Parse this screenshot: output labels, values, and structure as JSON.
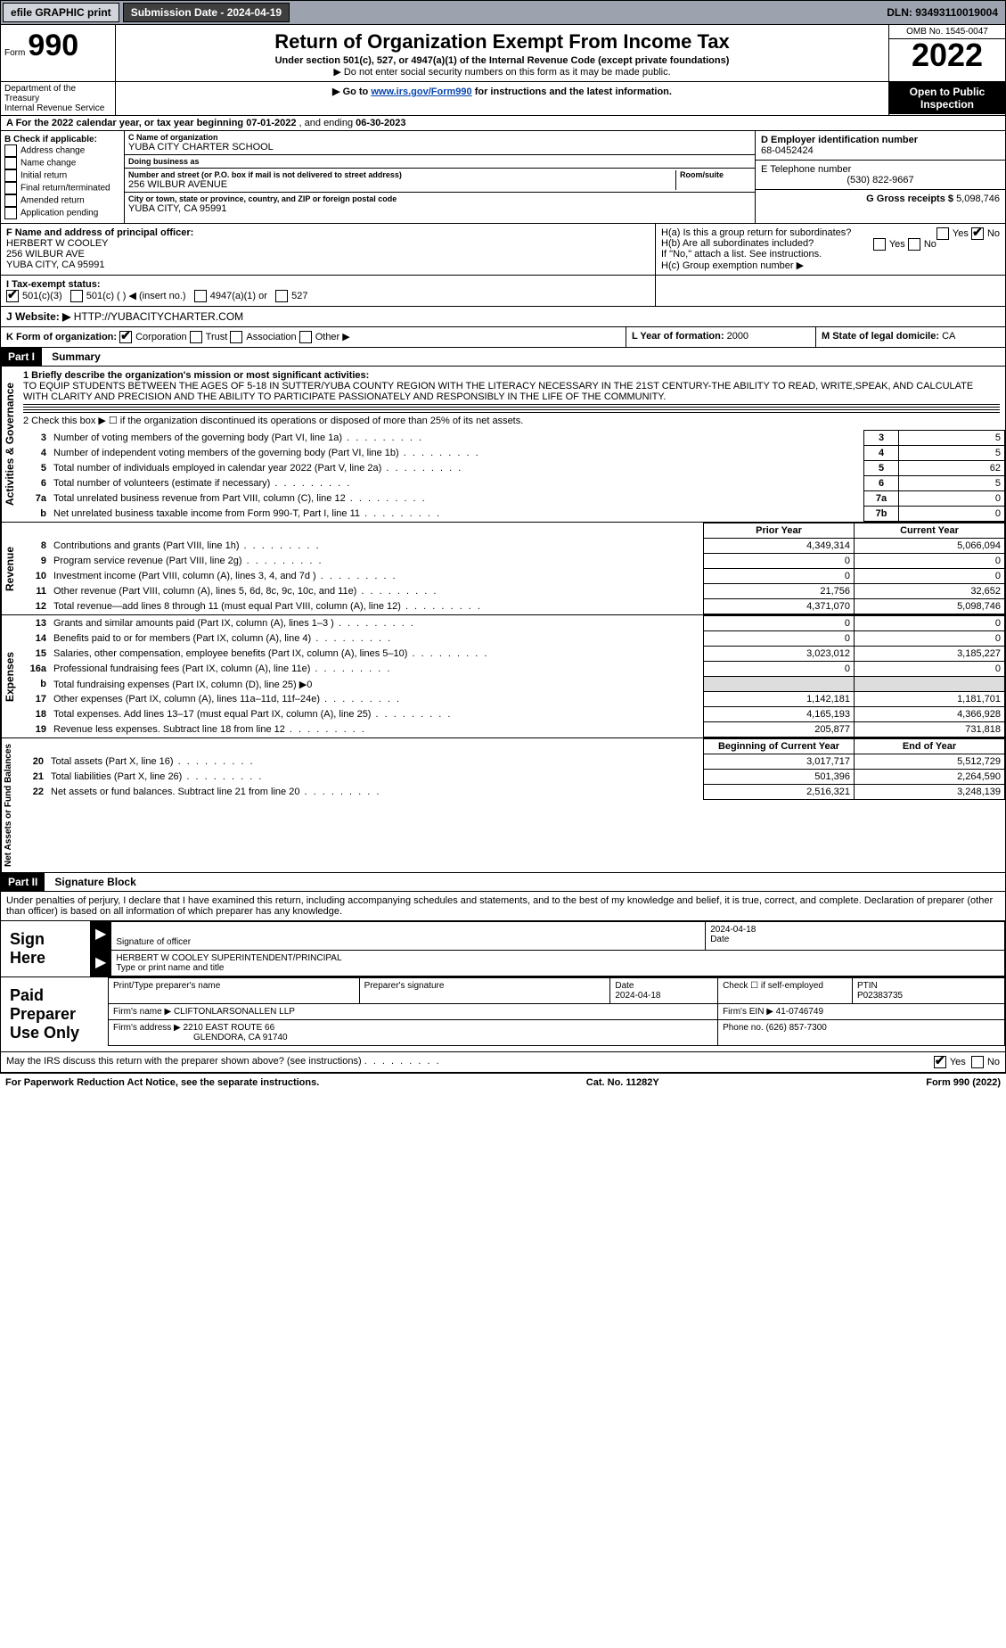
{
  "topbar": {
    "efile": "efile GRAPHIC print",
    "submission": "Submission Date - 2024-04-19",
    "dln": "DLN: 93493110019004"
  },
  "header": {
    "form_prefix": "Form",
    "form_no": "990",
    "dept1": "Department of the Treasury",
    "dept2": "Internal Revenue Service",
    "title": "Return of Organization Exempt From Income Tax",
    "subtitle": "Under section 501(c), 527, or 4947(a)(1) of the Internal Revenue Code (except private foundations)",
    "note1": "▶ Do not enter social security numbers on this form as it may be made public.",
    "note2_pre": "▶ Go to ",
    "note2_link": "www.irs.gov/Form990",
    "note2_post": " for instructions and the latest information.",
    "omb": "OMB No. 1545-0047",
    "year": "2022",
    "open_pub": "Open to Public Inspection"
  },
  "row_a": {
    "text_pre": "A For the 2022 calendar year, or tax year beginning ",
    "begin": "07-01-2022",
    "mid": "   , and ending ",
    "end": "06-30-2023"
  },
  "col_b": {
    "hdr": "B Check if applicable:",
    "items": [
      "Address change",
      "Name change",
      "Initial return",
      "Final return/terminated",
      "Amended return",
      "Application pending"
    ]
  },
  "col_c": {
    "c_label": "C Name of organization",
    "c_name": "YUBA CITY CHARTER SCHOOL",
    "dba_label": "Doing business as",
    "dba": "",
    "addr_label": "Number and street (or P.O. box if mail is not delivered to street address)",
    "room_label": "Room/suite",
    "addr": "256 WILBUR AVENUE",
    "city_label": "City or town, state or province, country, and ZIP or foreign postal code",
    "city": "YUBA CITY, CA  95991"
  },
  "col_d": {
    "label": "D Employer identification number",
    "val": "68-0452424"
  },
  "col_e": {
    "label": "E Telephone number",
    "val": "(530) 822-9667"
  },
  "col_g": {
    "label": "G Gross receipts $",
    "val": "5,098,746"
  },
  "row_f": {
    "label": "F  Name and address of principal officer:",
    "name": "HERBERT W COOLEY",
    "addr": "256 WILBUR AVE",
    "city": "YUBA CITY, CA  95991"
  },
  "row_h": {
    "ha": "H(a)  Is this a group return for subordinates?",
    "hb": "H(b)  Are all subordinates included?",
    "hb_note": "If \"No,\" attach a list. See instructions.",
    "hc": "H(c)  Group exemption number ▶",
    "yes": "Yes",
    "no": "No"
  },
  "row_i": {
    "label": "I   Tax-exempt status:",
    "opts": [
      "501(c)(3)",
      "501(c) (   ) ◀ (insert no.)",
      "4947(a)(1) or",
      "527"
    ]
  },
  "row_j": {
    "label": "J   Website: ▶",
    "val": "HTTP://YUBACITYCHARTER.COM"
  },
  "row_k": {
    "label": "K Form of organization:",
    "opts": [
      "Corporation",
      "Trust",
      "Association",
      "Other ▶"
    ],
    "l_label": "L Year of formation:",
    "l_val": "2000",
    "m_label": "M State of legal domicile:",
    "m_val": "CA"
  },
  "part1": {
    "hdr": "Part I",
    "title": "Summary",
    "line1_label": "1  Briefly describe the organization's mission or most significant activities:",
    "mission": "TO EQUIP STUDENTS BETWEEN THE AGES OF 5-18 IN SUTTER/YUBA COUNTY REGION WITH THE LITERACY NECESSARY IN THE 21ST CENTURY-THE ABILITY TO READ, WRITE,SPEAK, AND CALCULATE WITH CLARITY AND PRECISION AND THE ABILITY TO PARTICIPATE PASSIONATELY AND RESPONSIBLY IN THE LIFE OF THE COMMUNITY.",
    "line2": "2   Check this box ▶ ☐  if the organization discontinued its operations or disposed of more than 25% of its net assets.",
    "gov_rows": [
      {
        "n": "3",
        "label": "Number of voting members of the governing body (Part VI, line 1a)",
        "box": "3",
        "val": "5"
      },
      {
        "n": "4",
        "label": "Number of independent voting members of the governing body (Part VI, line 1b)",
        "box": "4",
        "val": "5"
      },
      {
        "n": "5",
        "label": "Total number of individuals employed in calendar year 2022 (Part V, line 2a)",
        "box": "5",
        "val": "62"
      },
      {
        "n": "6",
        "label": "Total number of volunteers (estimate if necessary)",
        "box": "6",
        "val": "5"
      },
      {
        "n": "7a",
        "label": "Total unrelated business revenue from Part VIII, column (C), line 12",
        "box": "7a",
        "val": "0"
      },
      {
        "n": "b",
        "label": "Net unrelated business taxable income from Form 990-T, Part I, line 11",
        "box": "7b",
        "val": "0"
      }
    ],
    "col_hdrs": {
      "prior": "Prior Year",
      "current": "Current Year"
    },
    "rev_rows": [
      {
        "n": "8",
        "label": "Contributions and grants (Part VIII, line 1h)",
        "prior": "4,349,314",
        "cur": "5,066,094"
      },
      {
        "n": "9",
        "label": "Program service revenue (Part VIII, line 2g)",
        "prior": "0",
        "cur": "0"
      },
      {
        "n": "10",
        "label": "Investment income (Part VIII, column (A), lines 3, 4, and 7d )",
        "prior": "0",
        "cur": "0"
      },
      {
        "n": "11",
        "label": "Other revenue (Part VIII, column (A), lines 5, 6d, 8c, 9c, 10c, and 11e)",
        "prior": "21,756",
        "cur": "32,652"
      },
      {
        "n": "12",
        "label": "Total revenue—add lines 8 through 11 (must equal Part VIII, column (A), line 12)",
        "prior": "4,371,070",
        "cur": "5,098,746"
      }
    ],
    "exp_rows": [
      {
        "n": "13",
        "label": "Grants and similar amounts paid (Part IX, column (A), lines 1–3 )",
        "prior": "0",
        "cur": "0"
      },
      {
        "n": "14",
        "label": "Benefits paid to or for members (Part IX, column (A), line 4)",
        "prior": "0",
        "cur": "0"
      },
      {
        "n": "15",
        "label": "Salaries, other compensation, employee benefits (Part IX, column (A), lines 5–10)",
        "prior": "3,023,012",
        "cur": "3,185,227"
      },
      {
        "n": "16a",
        "label": "Professional fundraising fees (Part IX, column (A), line 11e)",
        "prior": "0",
        "cur": "0"
      },
      {
        "n": "b",
        "label": "Total fundraising expenses (Part IX, column (D), line 25) ▶0",
        "prior": "",
        "cur": "",
        "noval": true
      },
      {
        "n": "17",
        "label": "Other expenses (Part IX, column (A), lines 11a–11d, 11f–24e)",
        "prior": "1,142,181",
        "cur": "1,181,701"
      },
      {
        "n": "18",
        "label": "Total expenses. Add lines 13–17 (must equal Part IX, column (A), line 25)",
        "prior": "4,165,193",
        "cur": "4,366,928"
      },
      {
        "n": "19",
        "label": "Revenue less expenses. Subtract line 18 from line 12",
        "prior": "205,877",
        "cur": "731,818"
      }
    ],
    "net_hdrs": {
      "begin": "Beginning of Current Year",
      "end": "End of Year"
    },
    "net_rows": [
      {
        "n": "20",
        "label": "Total assets (Part X, line 16)",
        "prior": "3,017,717",
        "cur": "5,512,729"
      },
      {
        "n": "21",
        "label": "Total liabilities (Part X, line 26)",
        "prior": "501,396",
        "cur": "2,264,590"
      },
      {
        "n": "22",
        "label": "Net assets or fund balances. Subtract line 21 from line 20",
        "prior": "2,516,321",
        "cur": "3,248,139"
      }
    ],
    "vtabs": {
      "gov": "Activities & Governance",
      "rev": "Revenue",
      "exp": "Expenses",
      "net": "Net Assets or Fund Balances"
    }
  },
  "part2": {
    "hdr": "Part II",
    "title": "Signature Block",
    "decl": "Under penalties of perjury, I declare that I have examined this return, including accompanying schedules and statements, and to the best of my knowledge and belief, it is true, correct, and complete. Declaration of preparer (other than officer) is based on all information of which preparer has any knowledge.",
    "sign_here": "Sign Here",
    "sig_officer": "Signature of officer",
    "sig_date": "2024-04-18",
    "date_label": "Date",
    "officer_name": "HERBERT W COOLEY  SUPERINTENDENT/PRINCIPAL",
    "type_label": "Type or print name and title",
    "paid": "Paid Preparer Use Only",
    "prep_hdrs": {
      "name": "Print/Type preparer's name",
      "sig": "Preparer's signature",
      "date": "Date",
      "check": "Check ☐ if self-employed",
      "ptin": "PTIN"
    },
    "prep_date": "2024-04-18",
    "ptin": "P02383735",
    "firm_name_label": "Firm's name    ▶",
    "firm_name": "CLIFTONLARSONALLEN LLP",
    "firm_ein_label": "Firm's EIN ▶",
    "firm_ein": "41-0746749",
    "firm_addr_label": "Firm's address ▶",
    "firm_addr1": "2210 EAST ROUTE 66",
    "firm_addr2": "GLENDORA, CA  91740",
    "phone_label": "Phone no.",
    "phone": "(626) 857-7300",
    "discuss": "May the IRS discuss this return with the preparer shown above? (see instructions)",
    "yes": "Yes",
    "no": "No"
  },
  "footer": {
    "left": "For Paperwork Reduction Act Notice, see the separate instructions.",
    "mid": "Cat. No. 11282Y",
    "right": "Form 990 (2022)"
  }
}
